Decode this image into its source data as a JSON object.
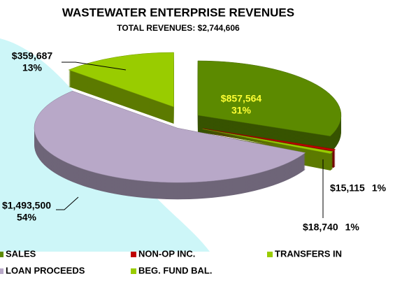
{
  "chart_data": {
    "type": "pie3d",
    "title": "WASTEWATER ENTERPRISE REVENUES",
    "subtitle": "TOTAL REVENUES: $2,744,606",
    "categories": [
      "SALES",
      "NON-OP INC.",
      "TRANSFERS IN",
      "LOAN PROCEEDS",
      "BEG. FUND BAL."
    ],
    "values": [
      857564,
      15115,
      18740,
      1493500,
      359687
    ],
    "value_labels": [
      "$857,564",
      "$15,115",
      "$18,740",
      "$1,493,500",
      "$359,687"
    ],
    "percent_labels": [
      "31%",
      "1%",
      "1%",
      "54%",
      "13%"
    ],
    "colors": [
      "#5c8a00",
      "#c00000",
      "#99cc00",
      "#b8a8c8",
      "#99cc00"
    ]
  }
}
